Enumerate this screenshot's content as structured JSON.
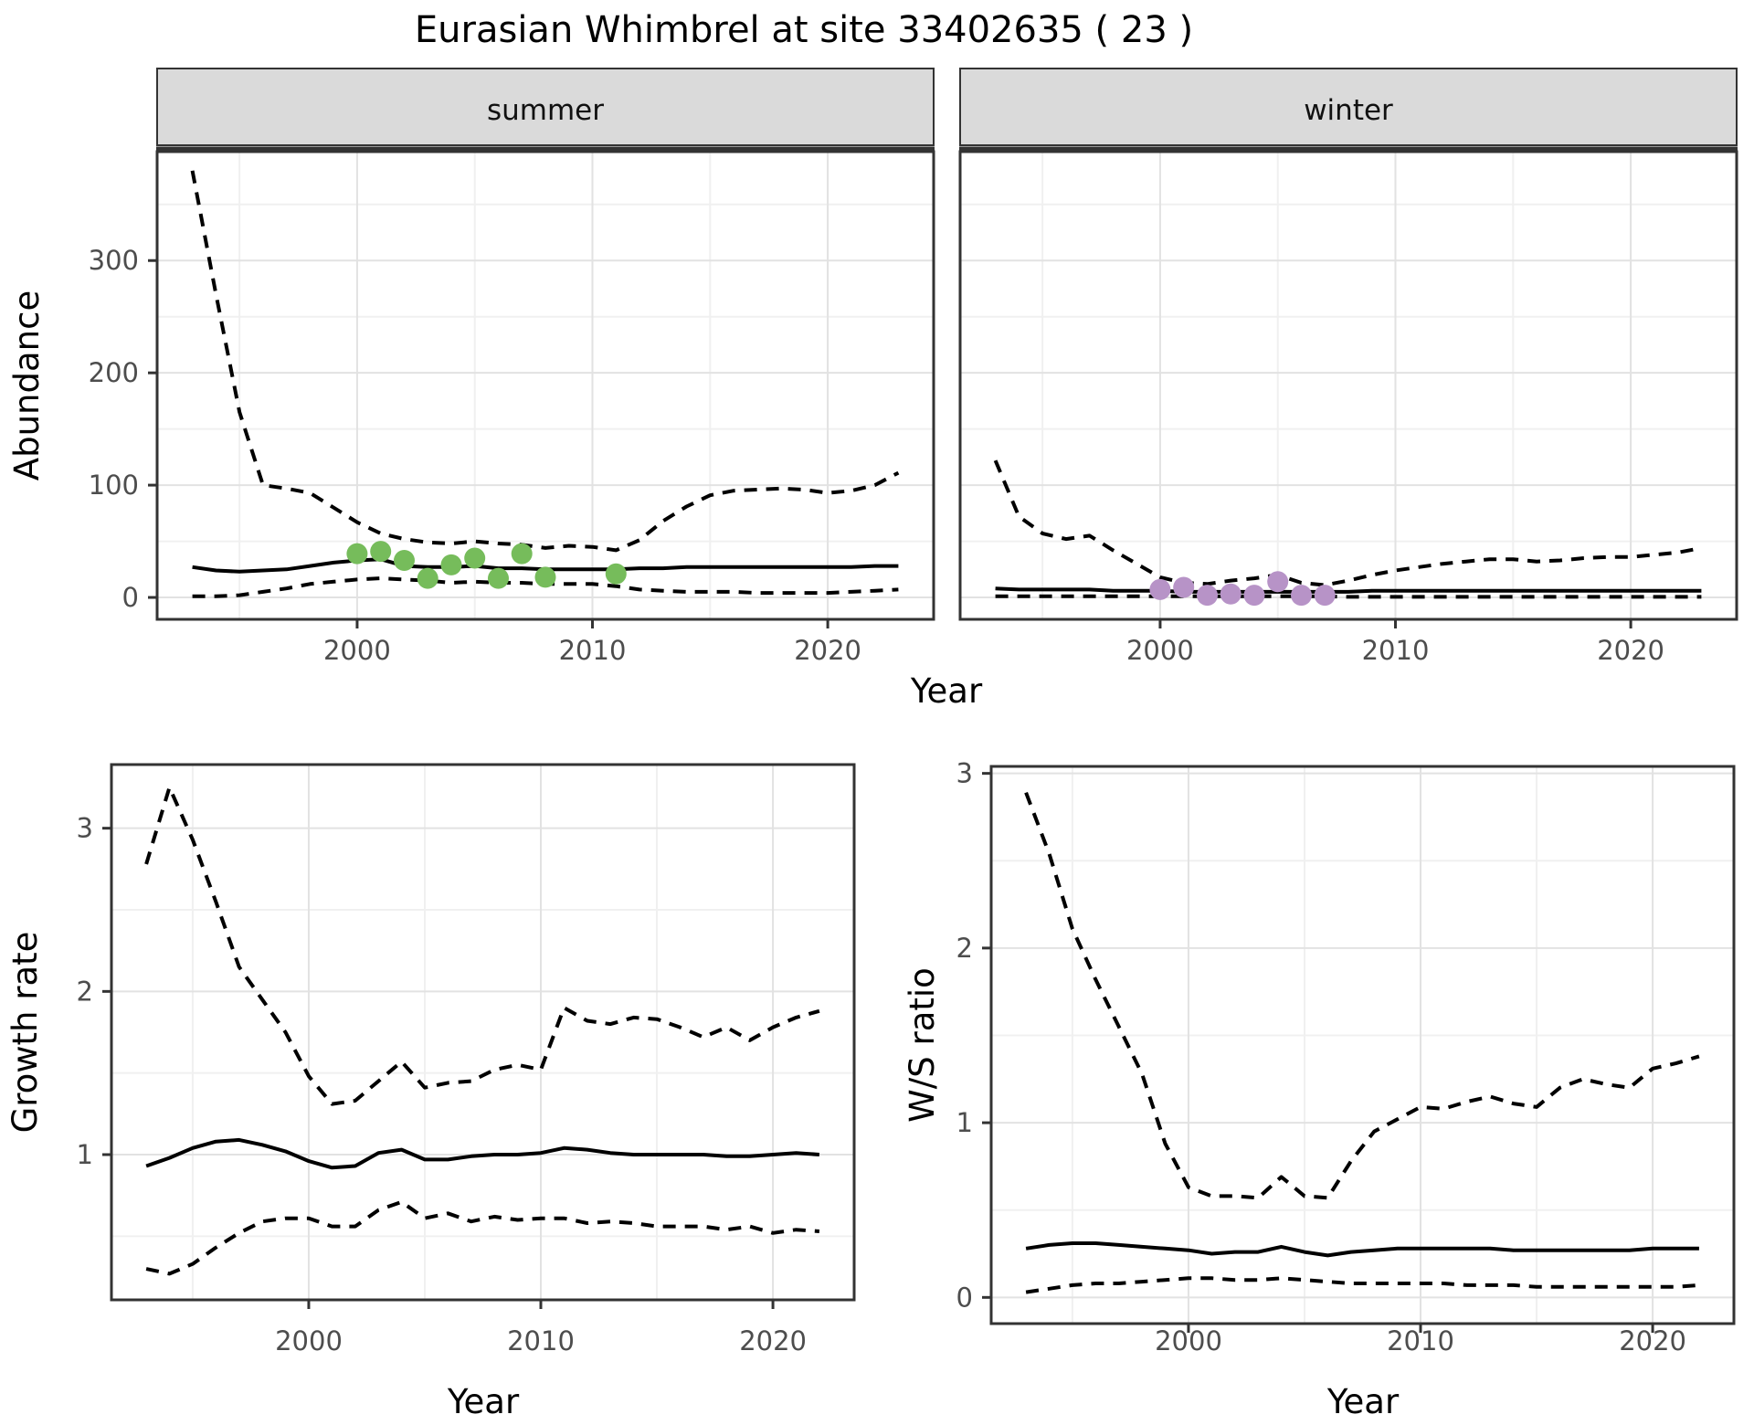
{
  "title": "Eurasian Whimbrel at site 33402635 ( 23 )",
  "facets": [
    "summer",
    "winter"
  ],
  "axis_titles": {
    "y_abundance": "Abundance",
    "x_top": "Year",
    "y_growth": "Growth rate",
    "x_growth": "Year",
    "y_ws": "W/S ratio",
    "x_ws": "Year"
  },
  "colors": {
    "summer_points": "#76BC5B",
    "winter_points": "#B793C7",
    "line": "#000000",
    "panel_border": "#333333",
    "grid_major": "#E2E2E2",
    "grid_minor": "#F0F0F0",
    "tick_text": "#4D4D4D",
    "strip_fill": "#DADADA",
    "background": "#FFFFFF"
  },
  "chart_data": [
    {
      "id": "abundance_summer",
      "type": "line",
      "facet": "summer",
      "xlabel": "Year",
      "ylabel": "Abundance",
      "xlim": [
        1991.5,
        2024.5
      ],
      "ylim": [
        -19.5,
        397
      ],
      "x_ticks": [
        2000,
        2010,
        2020
      ],
      "x_tick_labels": [
        "2000",
        "2010",
        "2020"
      ],
      "x_minor": [
        1995,
        2005,
        2015
      ],
      "y_ticks": [
        0,
        100,
        200,
        300
      ],
      "y_tick_labels": [
        "0",
        "100",
        "200",
        "300"
      ],
      "y_minor": [
        50,
        150,
        250,
        350
      ],
      "show_y_labels": true,
      "x": [
        1993,
        1994,
        1995,
        1996,
        1997,
        1998,
        1999,
        2000,
        2001,
        2002,
        2003,
        2004,
        2005,
        2006,
        2007,
        2008,
        2009,
        2010,
        2011,
        2012,
        2013,
        2014,
        2015,
        2016,
        2017,
        2018,
        2019,
        2020,
        2021,
        2022,
        2023
      ],
      "series": [
        {
          "name": "upper 95% CI",
          "style": "dashed",
          "values": [
            380,
            270,
            165,
            100,
            97,
            93,
            80,
            67,
            57,
            52,
            49,
            48,
            50,
            48,
            47,
            44,
            46,
            45,
            42,
            51,
            68,
            81,
            91,
            95,
            96,
            97,
            96,
            93,
            95,
            100,
            111
          ]
        },
        {
          "name": "median estimate",
          "style": "solid",
          "values": [
            27,
            24,
            23,
            24,
            25,
            28,
            31,
            33,
            34,
            28,
            27,
            27,
            28,
            26,
            26,
            25,
            25,
            25,
            25,
            26,
            26,
            27,
            27,
            27,
            27,
            27,
            27,
            27,
            27,
            28,
            28
          ]
        },
        {
          "name": "lower 95% CI",
          "style": "dashed",
          "values": [
            1,
            1,
            2,
            5,
            8,
            12,
            14,
            16,
            17,
            16,
            15,
            13,
            14,
            13,
            13,
            12,
            12,
            12,
            10,
            7,
            6,
            5,
            5,
            5,
            4,
            4,
            4,
            4,
            5,
            6,
            7
          ]
        }
      ],
      "points": {
        "name": "observed summer counts",
        "color": "#76BC5B",
        "x": [
          2000,
          2001,
          2002,
          2003,
          2004,
          2005,
          2006,
          2007,
          2008,
          2011
        ],
        "y": [
          39,
          41,
          33,
          17,
          29,
          35,
          17,
          39,
          18,
          21
        ]
      }
    },
    {
      "id": "abundance_winter",
      "type": "line",
      "facet": "winter",
      "xlabel": "Year",
      "ylabel": "Abundance",
      "xlim": [
        1991.5,
        2024.5
      ],
      "ylim": [
        -19.5,
        397
      ],
      "x_ticks": [
        2000,
        2010,
        2020
      ],
      "x_tick_labels": [
        "2000",
        "2010",
        "2020"
      ],
      "x_minor": [
        1995,
        2005,
        2015
      ],
      "y_ticks": [
        0,
        100,
        200,
        300
      ],
      "y_tick_labels": [
        "0",
        "100",
        "200",
        "300"
      ],
      "y_minor": [
        50,
        150,
        250,
        350
      ],
      "show_y_labels": false,
      "x": [
        1993,
        1994,
        1995,
        1996,
        1997,
        1998,
        1999,
        2000,
        2001,
        2002,
        2003,
        2004,
        2005,
        2006,
        2007,
        2008,
        2009,
        2010,
        2011,
        2012,
        2013,
        2014,
        2015,
        2016,
        2017,
        2018,
        2019,
        2020,
        2021,
        2022,
        2023
      ],
      "series": [
        {
          "name": "upper 95% CI",
          "style": "dashed",
          "values": [
            122,
            72,
            57,
            52,
            55,
            42,
            30,
            18,
            13,
            12,
            15,
            17,
            20,
            13,
            11,
            15,
            20,
            24,
            27,
            30,
            32,
            34,
            34,
            32,
            33,
            35,
            36,
            36,
            38,
            40,
            44
          ]
        },
        {
          "name": "median estimate",
          "style": "solid",
          "values": [
            8,
            7,
            7,
            7,
            7,
            6,
            6,
            6,
            5,
            5,
            5,
            5,
            5,
            5,
            5,
            5,
            6,
            6,
            6,
            6,
            6,
            6,
            6,
            6,
            6,
            6,
            6,
            6,
            6,
            6,
            6
          ]
        },
        {
          "name": "lower 95% CI",
          "style": "dashed",
          "values": [
            1,
            1,
            1,
            1,
            1,
            1,
            1,
            1,
            1,
            1,
            1,
            1,
            1,
            1,
            1,
            0.5,
            0.5,
            0.5,
            0.5,
            0.5,
            0.5,
            0.5,
            0.5,
            0.5,
            0.5,
            0.5,
            0.5,
            0.5,
            0.5,
            0.5,
            0.5
          ]
        }
      ],
      "points": {
        "name": "observed winter counts",
        "color": "#B793C7",
        "x": [
          2000,
          2001,
          2002,
          2003,
          2004,
          2005,
          2006,
          2007
        ],
        "y": [
          7,
          9,
          2,
          3,
          2,
          14,
          2,
          2
        ]
      }
    },
    {
      "id": "growth_rate",
      "type": "line",
      "facet": null,
      "xlabel": "Year",
      "ylabel": "Growth rate",
      "xlim": [
        1991.5,
        2023.5
      ],
      "ylim": [
        0.11,
        3.39
      ],
      "x_ticks": [
        2000,
        2010,
        2020
      ],
      "x_tick_labels": [
        "2000",
        "2010",
        "2020"
      ],
      "x_minor": [
        1995,
        2005,
        2015
      ],
      "y_ticks": [
        1,
        2,
        3
      ],
      "y_tick_labels": [
        "1",
        "2",
        "3"
      ],
      "y_minor": [
        0.5,
        1.5,
        2.5
      ],
      "show_y_labels": true,
      "x": [
        1993,
        1994,
        1995,
        1996,
        1997,
        1998,
        1999,
        2000,
        2001,
        2002,
        2003,
        2004,
        2005,
        2006,
        2007,
        2008,
        2009,
        2010,
        2011,
        2012,
        2013,
        2014,
        2015,
        2016,
        2017,
        2018,
        2019,
        2020,
        2021,
        2022
      ],
      "series": [
        {
          "name": "upper 95% CI",
          "style": "dashed",
          "values": [
            2.78,
            3.25,
            2.93,
            2.55,
            2.15,
            1.95,
            1.75,
            1.48,
            1.31,
            1.33,
            1.45,
            1.57,
            1.41,
            1.44,
            1.45,
            1.52,
            1.55,
            1.52,
            1.9,
            1.82,
            1.8,
            1.84,
            1.83,
            1.78,
            1.72,
            1.78,
            1.7,
            1.78,
            1.84,
            1.88
          ]
        },
        {
          "name": "median estimate",
          "style": "solid",
          "values": [
            0.93,
            0.98,
            1.04,
            1.08,
            1.09,
            1.06,
            1.02,
            0.96,
            0.92,
            0.93,
            1.01,
            1.03,
            0.97,
            0.97,
            0.99,
            1.0,
            1.0,
            1.01,
            1.04,
            1.03,
            1.01,
            1.0,
            1.0,
            1.0,
            1.0,
            0.99,
            0.99,
            1.0,
            1.01,
            1.0
          ]
        },
        {
          "name": "lower 95% CI",
          "style": "dashed",
          "values": [
            0.3,
            0.27,
            0.33,
            0.43,
            0.52,
            0.59,
            0.61,
            0.61,
            0.56,
            0.56,
            0.66,
            0.71,
            0.61,
            0.64,
            0.59,
            0.62,
            0.6,
            0.61,
            0.61,
            0.58,
            0.59,
            0.58,
            0.56,
            0.56,
            0.56,
            0.54,
            0.56,
            0.52,
            0.54,
            0.53
          ]
        }
      ],
      "points": null
    },
    {
      "id": "ws_ratio",
      "type": "line",
      "facet": null,
      "xlabel": "Year",
      "ylabel": "W/S ratio",
      "xlim": [
        1991.5,
        2023.5
      ],
      "ylim": [
        -0.15,
        3.04
      ],
      "x_ticks": [
        2000,
        2010,
        2020
      ],
      "x_tick_labels": [
        "2000",
        "2010",
        "2020"
      ],
      "x_minor": [
        1995,
        2005,
        2015
      ],
      "y_ticks": [
        0,
        1,
        2,
        3
      ],
      "y_tick_labels": [
        "0",
        "1",
        "2",
        "3"
      ],
      "y_minor": [
        0.5,
        1.5,
        2.5
      ],
      "show_y_labels": true,
      "x": [
        1993,
        1994,
        1995,
        1996,
        1997,
        1998,
        1999,
        2000,
        2001,
        2002,
        2003,
        2004,
        2005,
        2006,
        2007,
        2008,
        2009,
        2010,
        2011,
        2012,
        2013,
        2014,
        2015,
        2016,
        2017,
        2018,
        2019,
        2020,
        2021,
        2022
      ],
      "series": [
        {
          "name": "upper 95% CI",
          "style": "dashed",
          "values": [
            2.89,
            2.54,
            2.11,
            1.82,
            1.55,
            1.28,
            0.88,
            0.63,
            0.58,
            0.58,
            0.57,
            0.69,
            0.58,
            0.57,
            0.78,
            0.95,
            1.02,
            1.09,
            1.08,
            1.12,
            1.15,
            1.11,
            1.09,
            1.2,
            1.25,
            1.22,
            1.2,
            1.31,
            1.34,
            1.38
          ]
        },
        {
          "name": "median estimate",
          "style": "solid",
          "values": [
            0.28,
            0.3,
            0.31,
            0.31,
            0.3,
            0.29,
            0.28,
            0.27,
            0.25,
            0.26,
            0.26,
            0.29,
            0.26,
            0.24,
            0.26,
            0.27,
            0.28,
            0.28,
            0.28,
            0.28,
            0.28,
            0.27,
            0.27,
            0.27,
            0.27,
            0.27,
            0.27,
            0.28,
            0.28,
            0.28
          ]
        },
        {
          "name": "lower 95% CI",
          "style": "dashed",
          "values": [
            0.03,
            0.05,
            0.07,
            0.08,
            0.08,
            0.09,
            0.1,
            0.11,
            0.11,
            0.1,
            0.1,
            0.11,
            0.1,
            0.09,
            0.08,
            0.08,
            0.08,
            0.08,
            0.08,
            0.07,
            0.07,
            0.07,
            0.06,
            0.06,
            0.06,
            0.06,
            0.06,
            0.06,
            0.06,
            0.07
          ]
        }
      ],
      "points": null
    }
  ]
}
